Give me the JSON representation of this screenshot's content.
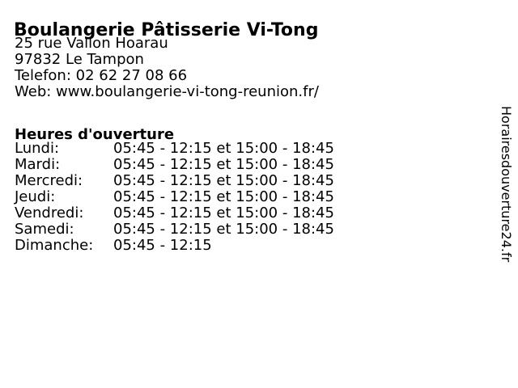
{
  "business": {
    "name": "Boulangerie Pâtisserie Vi-Tong",
    "address_line1": "25 rue Vallon Hoarau",
    "address_line2": "97832 Le Tampon",
    "phone_label": "Telefon:",
    "phone_number": "02 62 27 08 66",
    "web_label": "Web:",
    "website": "www.boulangerie-vi-tong-reunion.fr/"
  },
  "hours": {
    "heading": "Heures d'ouverture",
    "rows": [
      {
        "day": "Lundi:",
        "times": "05:45 - 12:15 et 15:00 - 18:45"
      },
      {
        "day": "Mardi:",
        "times": "05:45 - 12:15 et 15:00 - 18:45"
      },
      {
        "day": "Mercredi:",
        "times": "05:45 - 12:15 et 15:00 - 18:45"
      },
      {
        "day": "Jeudi:",
        "times": "05:45 - 12:15 et 15:00 - 18:45"
      },
      {
        "day": "Vendredi:",
        "times": "05:45 - 12:15 et 15:00 - 18:45"
      },
      {
        "day": "Samedi:",
        "times": "05:45 - 12:15 et 15:00 - 18:45"
      },
      {
        "day": "Dimanche:",
        "times": "05:45 - 12:15"
      }
    ]
  },
  "watermark": "Horairesdouverture24.fr",
  "colors": {
    "text": "#000000",
    "background": "#ffffff"
  }
}
